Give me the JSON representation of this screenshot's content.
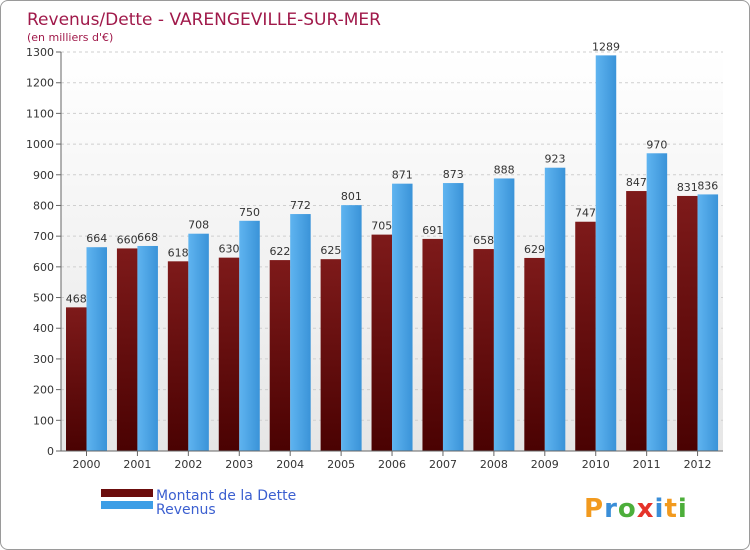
{
  "chart_data": {
    "type": "bar",
    "title": "Revenus/Dette - VARENGEVILLE-SUR-MER",
    "subtitle": "(en milliers d'€)",
    "categories": [
      "2000",
      "2001",
      "2002",
      "2003",
      "2004",
      "2005",
      "2006",
      "2007",
      "2008",
      "2009",
      "2010",
      "2011",
      "2012"
    ],
    "series": [
      {
        "name": "Montant de la Dette",
        "color": "#6b0d0d",
        "values": [
          468,
          660,
          618,
          630,
          622,
          625,
          705,
          691,
          658,
          629,
          747,
          847,
          831
        ]
      },
      {
        "name": "Revenus",
        "color": "#3d9ee6",
        "values": [
          664,
          668,
          708,
          750,
          772,
          801,
          871,
          873,
          888,
          923,
          1289,
          970,
          836
        ]
      }
    ],
    "ylim": [
      0,
      1300
    ],
    "yticks": [
      0,
      100,
      200,
      300,
      400,
      500,
      600,
      700,
      800,
      900,
      1000,
      1100,
      1200,
      1300
    ],
    "grid": true,
    "legend_position": "bottom-left",
    "logo": "Proxiti"
  }
}
